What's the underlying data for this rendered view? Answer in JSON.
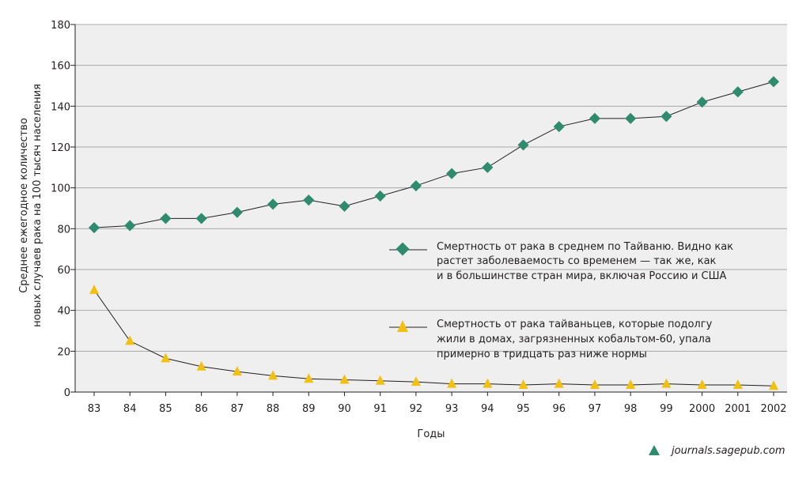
{
  "chart_data": {
    "type": "line",
    "categories": [
      "83",
      "84",
      "85",
      "86",
      "87",
      "88",
      "89",
      "90",
      "91",
      "92",
      "93",
      "94",
      "95",
      "96",
      "97",
      "98",
      "99",
      "2000",
      "2001",
      "2002"
    ],
    "ylim": [
      0,
      180
    ],
    "yticks": [
      0,
      20,
      40,
      60,
      80,
      100,
      120,
      140,
      160,
      180
    ],
    "grid": true,
    "xlabel": "Годы",
    "ylabel_line1": "Среднее ежегодное количество",
    "ylabel_line2": "новых случаев рака на 100 тысяч населения",
    "series": [
      {
        "marker": "diamond",
        "color": "#2e8b6e",
        "values": [
          80.5,
          81.5,
          85,
          85,
          88,
          92,
          94,
          91,
          96,
          101,
          107,
          110,
          121,
          130,
          134,
          134,
          135,
          142,
          147,
          152
        ],
        "legend_lines": [
          "Смертность от рака в среднем по Тайваню. Видно как",
          "растет заболеваемость со временем — так же, как",
          "и в большинстве стран мира, включая Россию и США"
        ]
      },
      {
        "marker": "triangle",
        "color": "#f2c011",
        "values": [
          50,
          25,
          16.5,
          12.5,
          10,
          8,
          6.5,
          6,
          5.5,
          5,
          4,
          4,
          3.5,
          4,
          3.5,
          3.5,
          4,
          3.5,
          3.5,
          3
        ],
        "legend_lines": [
          "Смертность от рака тайваньцев, которые подолгу",
          "жили в домах, загрязненных кобальтом-60, упала",
          "примерно в тридцать раз ниже нормы"
        ]
      }
    ]
  },
  "source": {
    "icon": "triangle-icon",
    "icon_color": "#2e8b6e",
    "text": "journals.sagepub.com"
  }
}
